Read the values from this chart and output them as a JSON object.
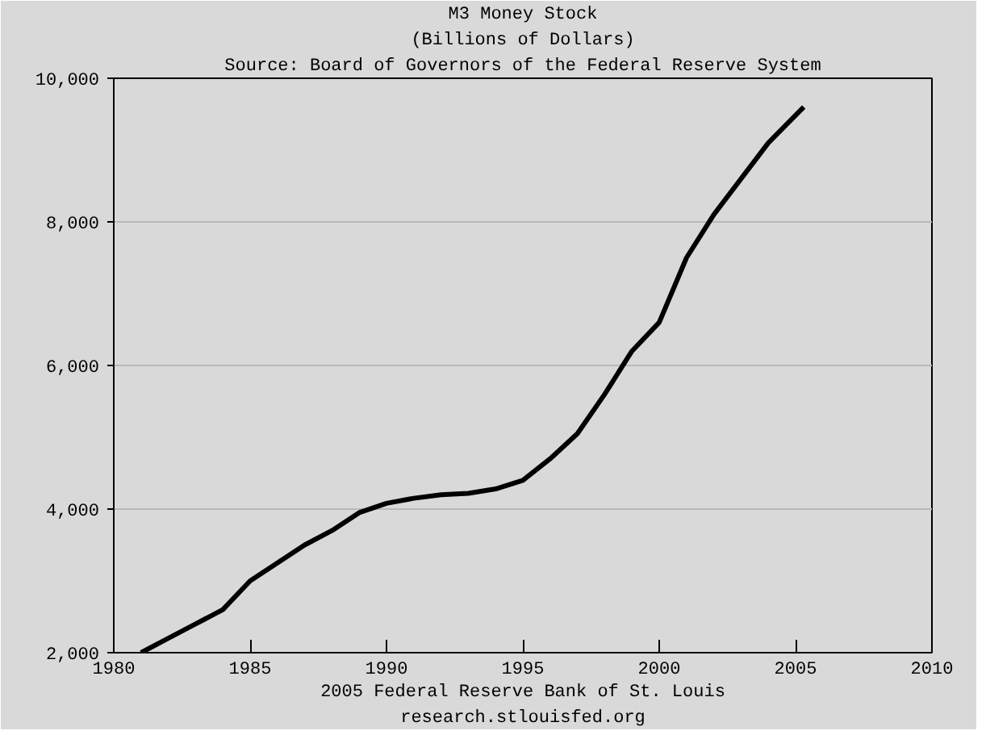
{
  "chart_data": {
    "type": "line",
    "title": "M3 Money Stock",
    "subtitle": "(Billions of Dollars)",
    "annotations": [
      "Source: Board of Governors of the Federal Reserve System",
      "2005 Federal Reserve Bank of St. Louis",
      "research.stlouisfed.org"
    ],
    "x": [
      1981,
      1982,
      1983,
      1984,
      1985,
      1986,
      1987,
      1988,
      1989,
      1990,
      1991,
      1992,
      1993,
      1994,
      1995,
      1996,
      1997,
      1998,
      1999,
      2000,
      2001,
      2002,
      2003,
      2004,
      2005.3
    ],
    "series": [
      {
        "color": "#000000",
        "values": [
          2000,
          2200,
          2400,
          2600,
          3000,
          3250,
          3500,
          3700,
          3950,
          4080,
          4150,
          4200,
          4220,
          4280,
          4400,
          4700,
          5050,
          5600,
          6200,
          6600,
          7500,
          8100,
          8600,
          9100,
          9600
        ]
      }
    ],
    "xlim": [
      1980,
      2010
    ],
    "xticks": [
      1980,
      1985,
      1990,
      1995,
      2000,
      2005,
      2010
    ],
    "ylim": [
      2000,
      10000
    ],
    "yticks": [
      {
        "value": 2000,
        "label": "2,000"
      },
      {
        "value": 4000,
        "label": "4,000"
      },
      {
        "value": 6000,
        "label": "6,000"
      },
      {
        "value": 8000,
        "label": "8,000"
      },
      {
        "value": 10000,
        "label": "10,000"
      }
    ],
    "grid": "y",
    "marker": "none",
    "line_style": "solid"
  }
}
